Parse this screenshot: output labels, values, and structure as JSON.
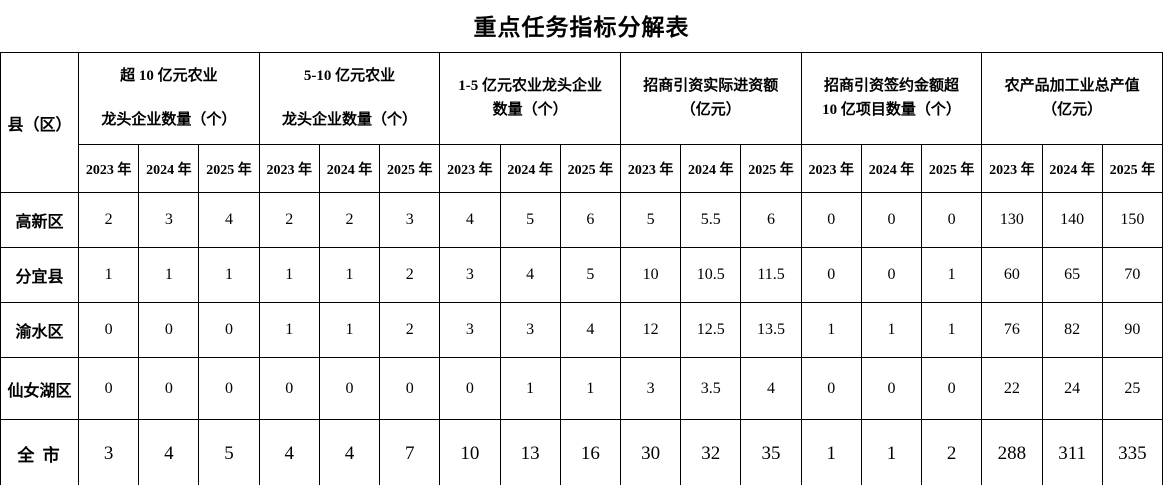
{
  "title": "重点任务指标分解表",
  "table": {
    "corner_header": "县（区）",
    "groups": [
      {
        "label": "超 10 亿元农业\n龙头企业数量（个）"
      },
      {
        "label": "5-10 亿元农业\n龙头企业数量（个）"
      },
      {
        "label": "1-5 亿元农业龙头企业\n数量（个）"
      },
      {
        "label": "招商引资实际进资额\n（亿元）"
      },
      {
        "label": "招商引资签约金额超\n10 亿项目数量（个）"
      },
      {
        "label": "农产品加工业总产值\n（亿元）"
      }
    ],
    "years": [
      "2023 年",
      "2024 年",
      "2025 年"
    ],
    "rows": [
      {
        "label": "高新区",
        "emphasis": false,
        "values": [
          "2",
          "3",
          "4",
          "2",
          "2",
          "3",
          "4",
          "5",
          "6",
          "5",
          "5.5",
          "6",
          "0",
          "0",
          "0",
          "130",
          "140",
          "150"
        ]
      },
      {
        "label": "分宜县",
        "emphasis": false,
        "values": [
          "1",
          "1",
          "1",
          "1",
          "1",
          "2",
          "3",
          "4",
          "5",
          "10",
          "10.5",
          "11.5",
          "0",
          "0",
          "1",
          "60",
          "65",
          "70"
        ]
      },
      {
        "label": "渝水区",
        "emphasis": false,
        "values": [
          "0",
          "0",
          "0",
          "1",
          "1",
          "2",
          "3",
          "3",
          "4",
          "12",
          "12.5",
          "13.5",
          "1",
          "1",
          "1",
          "76",
          "82",
          "90"
        ]
      },
      {
        "label": "仙女湖区",
        "emphasis": false,
        "values": [
          "0",
          "0",
          "0",
          "0",
          "0",
          "0",
          "0",
          "1",
          "1",
          "3",
          "3.5",
          "4",
          "0",
          "0",
          "0",
          "22",
          "24",
          "25"
        ]
      },
      {
        "label": "全 市",
        "emphasis": true,
        "values": [
          "3",
          "4",
          "5",
          "4",
          "4",
          "7",
          "10",
          "13",
          "16",
          "30",
          "32",
          "35",
          "1",
          "1",
          "2",
          "288",
          "311",
          "335"
        ]
      }
    ]
  },
  "chart_data": {
    "type": "table",
    "title": "重点任务指标分解表",
    "row_header": "县（区）",
    "column_groups": [
      "超10亿元农业龙头企业数量（个）",
      "5-10亿元农业龙头企业数量（个）",
      "1-5亿元农业龙头企业数量（个）",
      "招商引资实际进资额（亿元）",
      "招商引资签约金额超10亿项目数量（个）",
      "农产品加工业总产值（亿元）"
    ],
    "sub_columns": [
      "2023年",
      "2024年",
      "2025年"
    ],
    "rows": [
      {
        "name": "高新区",
        "values": [
          [
            2,
            3,
            4
          ],
          [
            2,
            2,
            3
          ],
          [
            4,
            5,
            6
          ],
          [
            5,
            5.5,
            6
          ],
          [
            0,
            0,
            0
          ],
          [
            130,
            140,
            150
          ]
        ]
      },
      {
        "name": "分宜县",
        "values": [
          [
            1,
            1,
            1
          ],
          [
            1,
            1,
            2
          ],
          [
            3,
            4,
            5
          ],
          [
            10,
            10.5,
            11.5
          ],
          [
            0,
            0,
            1
          ],
          [
            60,
            65,
            70
          ]
        ]
      },
      {
        "name": "渝水区",
        "values": [
          [
            0,
            0,
            0
          ],
          [
            1,
            1,
            2
          ],
          [
            3,
            3,
            4
          ],
          [
            12,
            12.5,
            13.5
          ],
          [
            1,
            1,
            1
          ],
          [
            76,
            82,
            90
          ]
        ]
      },
      {
        "name": "仙女湖区",
        "values": [
          [
            0,
            0,
            0
          ],
          [
            0,
            0,
            0
          ],
          [
            0,
            1,
            1
          ],
          [
            3,
            3.5,
            4
          ],
          [
            0,
            0,
            0
          ],
          [
            22,
            24,
            25
          ]
        ]
      },
      {
        "name": "全市",
        "values": [
          [
            3,
            4,
            5
          ],
          [
            4,
            4,
            7
          ],
          [
            10,
            13,
            16
          ],
          [
            30,
            32,
            35
          ],
          [
            1,
            1,
            2
          ],
          [
            288,
            311,
            335
          ]
        ]
      }
    ]
  }
}
